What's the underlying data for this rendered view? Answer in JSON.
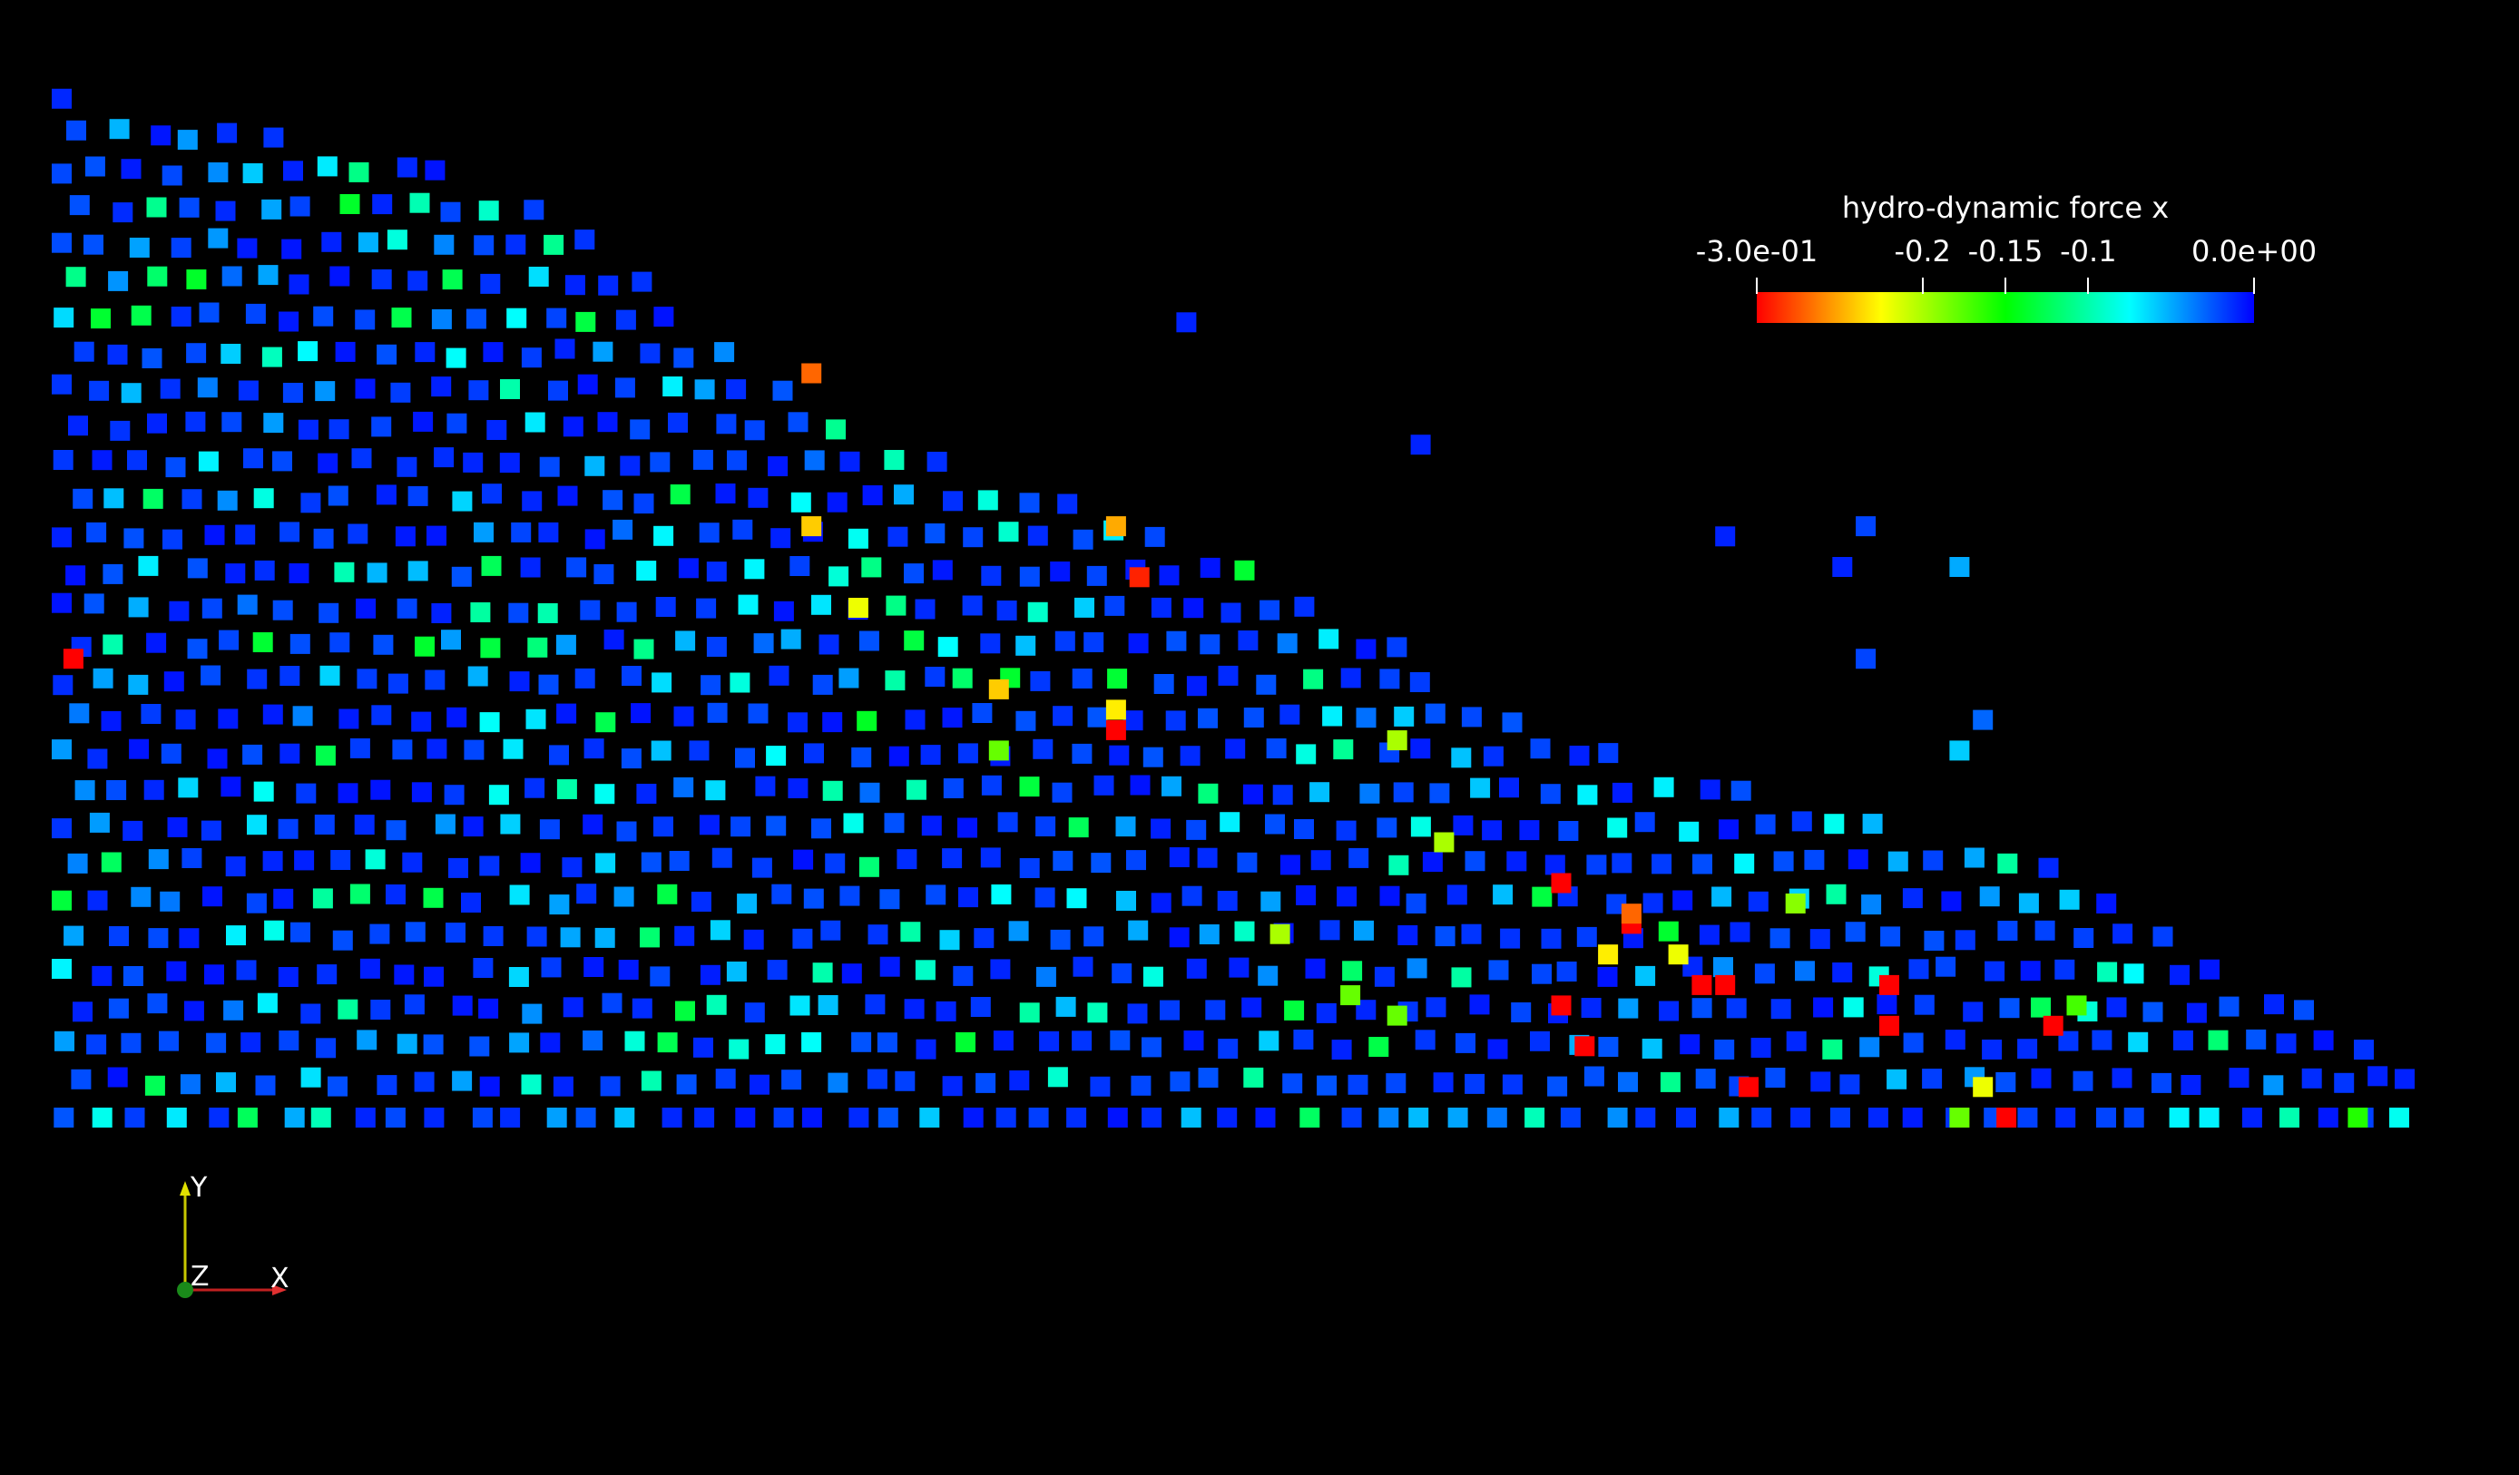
{
  "colors": {
    "background": "#000000",
    "colormap": [
      "#ff0000",
      "#ffff00",
      "#00ff00",
      "#00ffff",
      "#0000ff"
    ],
    "axis_x": "#e03030",
    "axis_y": "#e0e000",
    "axis_z": "#1a8a1a"
  },
  "legend": {
    "title": "hydro-dynamic force x",
    "range": [
      -0.3,
      0.0
    ],
    "ticks": [
      {
        "value": -0.3,
        "label": "-3.0e-01"
      },
      {
        "value": -0.2,
        "label": "-0.2"
      },
      {
        "value": -0.15,
        "label": "-0.15"
      },
      {
        "value": -0.1,
        "label": "-0.1"
      },
      {
        "value": 0.0,
        "label": "0.0e+00"
      }
    ]
  },
  "axes_triad": {
    "x": "X",
    "y": "Y",
    "z": "Z"
  },
  "chart_data": {
    "type": "scatter",
    "description_field": "hydro-dynamic force x",
    "marker": "square",
    "value_range": [
      -0.3,
      0.0
    ],
    "grid": false,
    "legend_position": "top-right",
    "pile_profile": {
      "x_range": [
        0.0,
        1.0
      ],
      "surface_height": [
        [
          0.0,
          1.0
        ],
        [
          0.2,
          0.92
        ],
        [
          0.3,
          0.72
        ],
        [
          0.5,
          0.55
        ],
        [
          0.62,
          0.4
        ],
        [
          0.72,
          0.32
        ],
        [
          0.85,
          0.25
        ],
        [
          1.0,
          0.06
        ]
      ],
      "approx_columns": 62,
      "approx_rows_at_left": 28
    },
    "highlight_particles": [
      {
        "x": 0.005,
        "y": 0.45,
        "v": -0.3
      },
      {
        "x": 0.32,
        "y": 0.73,
        "v": -0.27
      },
      {
        "x": 0.32,
        "y": 0.58,
        "v": -0.24
      },
      {
        "x": 0.34,
        "y": 0.5,
        "v": -0.22
      },
      {
        "x": 0.45,
        "y": 0.58,
        "v": -0.25
      },
      {
        "x": 0.45,
        "y": 0.4,
        "v": -0.23
      },
      {
        "x": 0.46,
        "y": 0.53,
        "v": -0.29
      },
      {
        "x": 0.45,
        "y": 0.38,
        "v": -0.3
      },
      {
        "x": 0.4,
        "y": 0.42,
        "v": -0.24
      },
      {
        "x": 0.4,
        "y": 0.36,
        "v": -0.18
      },
      {
        "x": 0.57,
        "y": 0.37,
        "v": -0.2
      },
      {
        "x": 0.52,
        "y": 0.18,
        "v": -0.2
      },
      {
        "x": 0.64,
        "y": 0.23,
        "v": -0.3
      },
      {
        "x": 0.67,
        "y": 0.19,
        "v": -0.3
      },
      {
        "x": 0.67,
        "y": 0.2,
        "v": -0.27
      },
      {
        "x": 0.69,
        "y": 0.16,
        "v": -0.22
      },
      {
        "x": 0.64,
        "y": 0.11,
        "v": -0.3
      },
      {
        "x": 0.65,
        "y": 0.07,
        "v": -0.3
      },
      {
        "x": 0.7,
        "y": 0.13,
        "v": -0.3
      },
      {
        "x": 0.71,
        "y": 0.13,
        "v": -0.3
      },
      {
        "x": 0.72,
        "y": 0.03,
        "v": -0.3
      },
      {
        "x": 0.78,
        "y": 0.13,
        "v": -0.3
      },
      {
        "x": 0.78,
        "y": 0.09,
        "v": -0.3
      },
      {
        "x": 0.85,
        "y": 0.09,
        "v": -0.3
      },
      {
        "x": 0.83,
        "y": 0.0,
        "v": -0.3
      },
      {
        "x": 0.82,
        "y": 0.03,
        "v": -0.22
      },
      {
        "x": 0.81,
        "y": 0.0,
        "v": -0.18
      },
      {
        "x": 0.86,
        "y": 0.11,
        "v": -0.17
      },
      {
        "x": 0.59,
        "y": 0.27,
        "v": -0.2
      },
      {
        "x": 0.55,
        "y": 0.12,
        "v": -0.18
      },
      {
        "x": 0.57,
        "y": 0.1,
        "v": -0.18
      },
      {
        "x": 0.74,
        "y": 0.21,
        "v": -0.19
      },
      {
        "x": 0.66,
        "y": 0.16,
        "v": -0.23
      },
      {
        "x": 0.98,
        "y": 0.0,
        "v": -0.16
      }
    ],
    "floating_particles": [
      {
        "x": 0.48,
        "y": 0.78,
        "v": -0.01
      },
      {
        "x": 0.58,
        "y": 0.66,
        "v": -0.01
      },
      {
        "x": 0.71,
        "y": 0.57,
        "v": -0.01
      },
      {
        "x": 0.76,
        "y": 0.54,
        "v": -0.01
      },
      {
        "x": 0.77,
        "y": 0.58,
        "v": -0.02
      },
      {
        "x": 0.81,
        "y": 0.54,
        "v": -0.05
      },
      {
        "x": 0.77,
        "y": 0.45,
        "v": -0.02
      },
      {
        "x": 0.82,
        "y": 0.39,
        "v": -0.03
      },
      {
        "x": 0.81,
        "y": 0.36,
        "v": -0.06
      }
    ]
  }
}
